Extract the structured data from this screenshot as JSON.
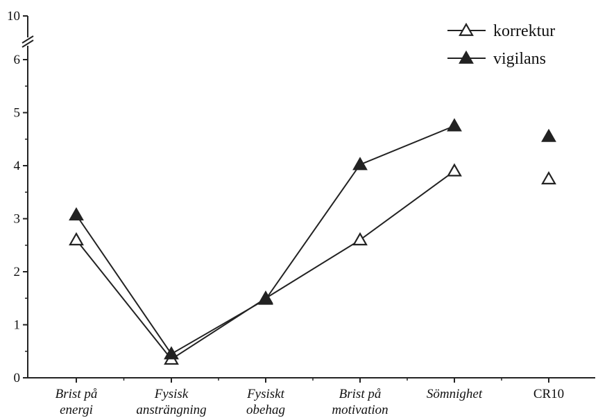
{
  "chart_data": {
    "type": "line",
    "categories": [
      {
        "lines": [
          "Brist på",
          "energi"
        ],
        "italic": true
      },
      {
        "lines": [
          "Fysisk",
          "ansträngning"
        ],
        "italic": true
      },
      {
        "lines": [
          "Fysiskt",
          "obehag"
        ],
        "italic": true
      },
      {
        "lines": [
          "Brist på",
          "motivation"
        ],
        "italic": true
      },
      {
        "lines": [
          "Sömnighet"
        ],
        "italic": true
      },
      {
        "lines": [
          "CR10"
        ],
        "italic": false
      }
    ],
    "y_ticks": [
      "0",
      "1",
      "2",
      "3",
      "4",
      "5",
      "6",
      "10"
    ],
    "y_tick_values": [
      0,
      1,
      2,
      3,
      4,
      5,
      6,
      10
    ],
    "ylim": [
      0,
      10
    ],
    "axis_break": "between 6 and 10",
    "grid": false,
    "legend_position": "top-right",
    "connect_first_n": 5,
    "series": [
      {
        "name": "korrektur",
        "marker": "open-triangle",
        "values": [
          2.6,
          0.35,
          1.5,
          2.6,
          3.9,
          3.75
        ]
      },
      {
        "name": "vigilans",
        "marker": "filled-triangle",
        "values": [
          3.07,
          0.45,
          1.48,
          4.02,
          4.75,
          4.55
        ]
      }
    ],
    "colors": {
      "line": "#222222",
      "filled_marker": "#222222",
      "open_marker_fill": "#ffffff"
    }
  }
}
